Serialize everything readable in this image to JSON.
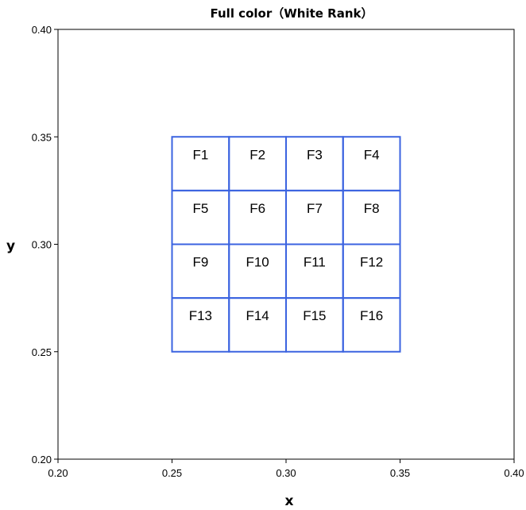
{
  "chart_data": {
    "type": "scatter",
    "title": "Full  color（White Rank）",
    "xlabel": "x",
    "ylabel": "y",
    "xlim": [
      0.2,
      0.4
    ],
    "ylim": [
      0.2,
      0.4
    ],
    "x_ticks": [
      "0.20",
      "0.25",
      "0.30",
      "0.35",
      "0.40"
    ],
    "y_ticks": [
      "0.20",
      "0.25",
      "0.30",
      "0.35",
      "0.40"
    ],
    "grid": false,
    "legend": "none",
    "colors": {
      "cell_border": "#3b63e0",
      "axis": "#000000"
    },
    "regions": [
      {
        "label": "F1",
        "x": [
          0.25,
          0.275
        ],
        "y": [
          0.325,
          0.35
        ]
      },
      {
        "label": "F2",
        "x": [
          0.275,
          0.3
        ],
        "y": [
          0.325,
          0.35
        ]
      },
      {
        "label": "F3",
        "x": [
          0.3,
          0.325
        ],
        "y": [
          0.325,
          0.35
        ]
      },
      {
        "label": "F4",
        "x": [
          0.325,
          0.35
        ],
        "y": [
          0.325,
          0.35
        ]
      },
      {
        "label": "F5",
        "x": [
          0.25,
          0.275
        ],
        "y": [
          0.3,
          0.325
        ]
      },
      {
        "label": "F6",
        "x": [
          0.275,
          0.3
        ],
        "y": [
          0.3,
          0.325
        ]
      },
      {
        "label": "F7",
        "x": [
          0.3,
          0.325
        ],
        "y": [
          0.3,
          0.325
        ]
      },
      {
        "label": "F8",
        "x": [
          0.325,
          0.35
        ],
        "y": [
          0.3,
          0.325
        ]
      },
      {
        "label": "F9",
        "x": [
          0.25,
          0.275
        ],
        "y": [
          0.275,
          0.3
        ]
      },
      {
        "label": "F10",
        "x": [
          0.275,
          0.3
        ],
        "y": [
          0.275,
          0.3
        ]
      },
      {
        "label": "F11",
        "x": [
          0.3,
          0.325
        ],
        "y": [
          0.275,
          0.3
        ]
      },
      {
        "label": "F12",
        "x": [
          0.325,
          0.35
        ],
        "y": [
          0.275,
          0.3
        ]
      },
      {
        "label": "F13",
        "x": [
          0.25,
          0.275
        ],
        "y": [
          0.25,
          0.275
        ]
      },
      {
        "label": "F14",
        "x": [
          0.275,
          0.3
        ],
        "y": [
          0.25,
          0.275
        ]
      },
      {
        "label": "F15",
        "x": [
          0.3,
          0.325
        ],
        "y": [
          0.25,
          0.275
        ]
      },
      {
        "label": "F16",
        "x": [
          0.325,
          0.35
        ],
        "y": [
          0.25,
          0.275
        ]
      }
    ]
  }
}
